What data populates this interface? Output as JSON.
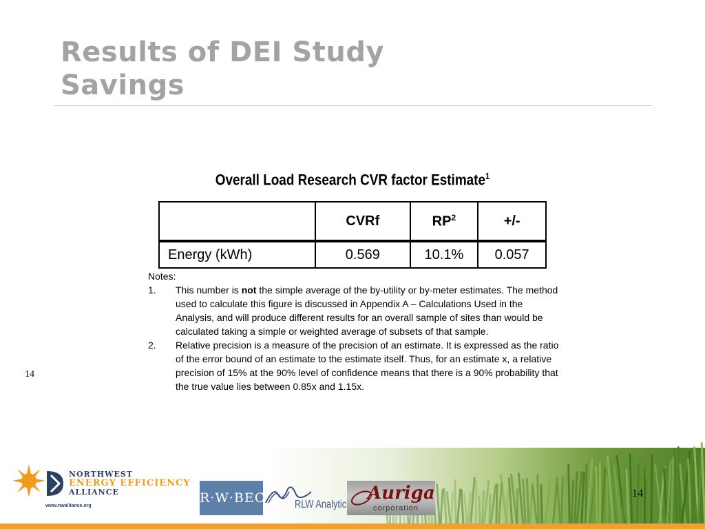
{
  "slide": {
    "title_line1": "Results of DEI Study",
    "title_line2": "Savings",
    "page_number_left": "14",
    "page_number_right": "14"
  },
  "table": {
    "caption": "Overall Load Research CVR factor Estimate",
    "caption_superscript": "1",
    "headers": {
      "blank": "",
      "cvrf": "CVRf",
      "rp": "RP",
      "rp_superscript": "2",
      "plus_minus": "+/-"
    },
    "rows": [
      {
        "label": "Energy (kWh)",
        "cvrf": "0.569",
        "rp": "10.1%",
        "plus_minus": "0.057"
      }
    ]
  },
  "notes": {
    "heading": "Notes:",
    "items": [
      {
        "number": "1.",
        "text_before": "This number is ",
        "text_bold": "not",
        "text_after": " the simple average of the by-utility or by-meter estimates.  The method used to calculate this figure is discussed in Appendix A – Calculations Used in the Analysis, and will produce different results for an overall sample of sites than would be calculated taking a simple or weighted average of subsets of that sample."
      },
      {
        "number": "2.",
        "text": "Relative precision is a measure of the precision of an estimate.  It is expressed as the ratio of the error bound of an estimate to the estimate itself.  Thus, for an estimate x, a relative precision of 15% at the 90% level of confidence means that there is a 90% probability that the true value lies between 0.85x and 1.15x."
      }
    ]
  },
  "footer": {
    "neea": {
      "line1": "NORTHWEST",
      "line2": "ENERGY EFFICIENCY",
      "line3": "ALLIANCE",
      "url": "www.nwalliance.org"
    },
    "rwbeck": "R·W·BECK",
    "rlw": "RLW Analytics",
    "auriga": "Auriga",
    "auriga_sub": "corporation"
  },
  "colors": {
    "title": "#a3a3a3",
    "neea_orange": "#f29a1e",
    "neea_navy": "#2d3f63",
    "orange_bar": "#f0a030",
    "rwbeck_blue": "#5d7fa8",
    "auriga_red": "#7a1010"
  }
}
